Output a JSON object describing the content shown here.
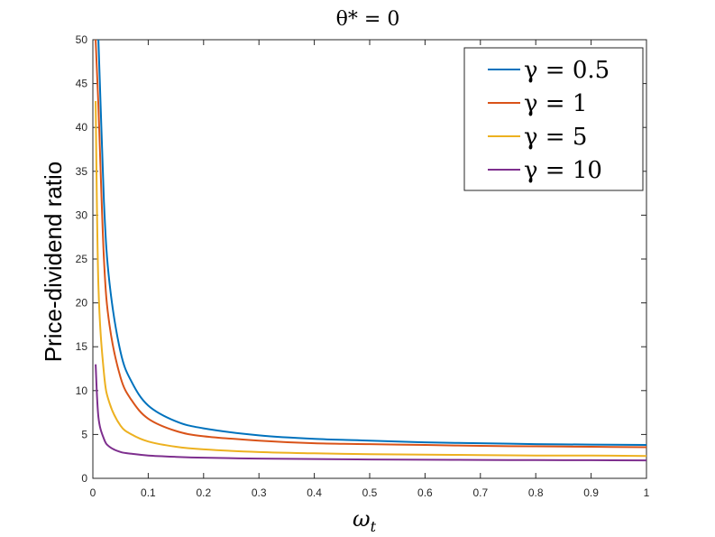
{
  "chart_data": {
    "type": "line",
    "title": "θ* = 0",
    "xlabel": "ω",
    "xlabel_sub": "t",
    "ylabel": "Price-dividend ratio",
    "xlim": [
      0,
      1
    ],
    "ylim": [
      0,
      50
    ],
    "xticks": [
      "0",
      "0.1",
      "0.2",
      "0.3",
      "0.4",
      "0.5",
      "0.6",
      "0.7",
      "0.8",
      "0.9",
      "1"
    ],
    "yticks": [
      "0",
      "5",
      "10",
      "15",
      "20",
      "25",
      "30",
      "35",
      "40",
      "45",
      "50"
    ],
    "grid": false,
    "legend_position": "top-right",
    "x": [
      0.005,
      0.01,
      0.02,
      0.03,
      0.05,
      0.07,
      0.1,
      0.15,
      0.2,
      0.3,
      0.4,
      0.5,
      0.6,
      0.7,
      0.8,
      0.9,
      1.0
    ],
    "series": [
      {
        "name": "γ = 0.5",
        "color": "#0072BD",
        "values": [
          50,
          50,
          31.5,
          22.3,
          14.4,
          11.0,
          8.3,
          6.5,
          5.7,
          4.9,
          4.5,
          4.3,
          4.1,
          4.0,
          3.9,
          3.85,
          3.8
        ]
      },
      {
        "name": "γ = 1",
        "color": "#D95319",
        "values": [
          50,
          42.5,
          25.0,
          17.5,
          11.5,
          8.9,
          6.8,
          5.4,
          4.8,
          4.3,
          4.0,
          3.9,
          3.8,
          3.7,
          3.65,
          3.6,
          3.55
        ]
      },
      {
        "name": "γ = 5",
        "color": "#EDB120",
        "values": [
          43.0,
          22.0,
          12.0,
          8.6,
          6.0,
          5.0,
          4.2,
          3.6,
          3.3,
          3.0,
          2.85,
          2.75,
          2.7,
          2.65,
          2.6,
          2.6,
          2.55
        ]
      },
      {
        "name": "γ = 10",
        "color": "#7E2F8E",
        "values": [
          13.0,
          7.0,
          4.5,
          3.6,
          3.0,
          2.8,
          2.6,
          2.45,
          2.35,
          2.25,
          2.2,
          2.15,
          2.12,
          2.1,
          2.08,
          2.07,
          2.05
        ]
      }
    ]
  }
}
